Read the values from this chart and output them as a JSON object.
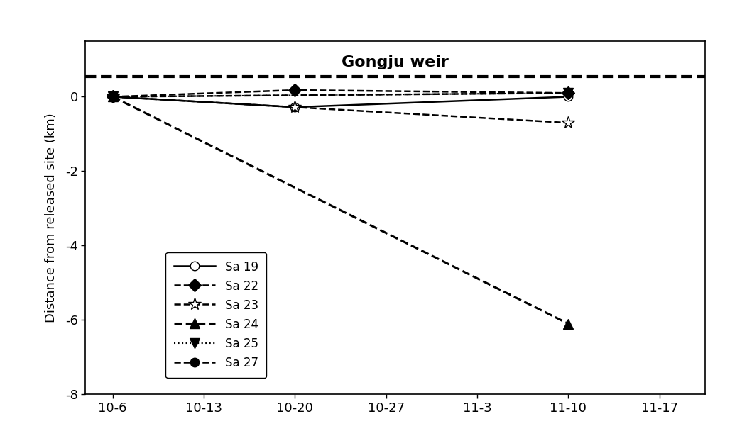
{
  "title": "Gongju weir",
  "ylabel": "Distance from released site (km)",
  "xlim": [
    -0.3,
    6.5
  ],
  "ylim": [
    -8.0,
    1.5
  ],
  "yticks": [
    0,
    -2,
    -4,
    -6,
    -8
  ],
  "xtick_labels": [
    "10-6",
    "10-13",
    "10-20",
    "10-27",
    "11-3",
    "11-10",
    "11-17"
  ],
  "weir_y": 0.55,
  "series": [
    {
      "label": "Sa 19",
      "x": [
        0,
        2,
        5
      ],
      "y": [
        0.0,
        -0.28,
        0.0
      ],
      "linestyle": "-",
      "marker": "o",
      "markerfacecolor": "white",
      "markeredgecolor": "black",
      "color": "black",
      "linewidth": 1.8,
      "markersize": 9
    },
    {
      "label": "Sa 22",
      "x": [
        0,
        2,
        5
      ],
      "y": [
        0.0,
        0.18,
        0.1
      ],
      "linestyle": "--",
      "marker": "D",
      "markerfacecolor": "black",
      "markeredgecolor": "black",
      "color": "black",
      "linewidth": 1.8,
      "markersize": 9
    },
    {
      "label": "Sa 23",
      "x": [
        0,
        2,
        5
      ],
      "y": [
        0.0,
        -0.28,
        -0.7
      ],
      "linestyle": "--",
      "marker": "*",
      "markerfacecolor": "white",
      "markeredgecolor": "black",
      "color": "black",
      "linewidth": 1.8,
      "markersize": 13
    },
    {
      "label": "Sa 24",
      "x": [
        0,
        5
      ],
      "y": [
        0.0,
        -6.1
      ],
      "linestyle": "--",
      "marker": "^",
      "markerfacecolor": "black",
      "markeredgecolor": "black",
      "color": "black",
      "linewidth": 2.2,
      "markersize": 10
    },
    {
      "label": "Sa 25",
      "x": [
        0,
        5
      ],
      "y": [
        0.0,
        0.1
      ],
      "linestyle": ":",
      "marker": "v",
      "markerfacecolor": "black",
      "markeredgecolor": "black",
      "color": "black",
      "linewidth": 1.5,
      "markersize": 10
    },
    {
      "label": "Sa 27",
      "x": [
        0,
        5
      ],
      "y": [
        0.0,
        0.1
      ],
      "linestyle": "--",
      "marker": "o",
      "markerfacecolor": "black",
      "markeredgecolor": "black",
      "color": "black",
      "linewidth": 1.8,
      "markersize": 9
    }
  ]
}
